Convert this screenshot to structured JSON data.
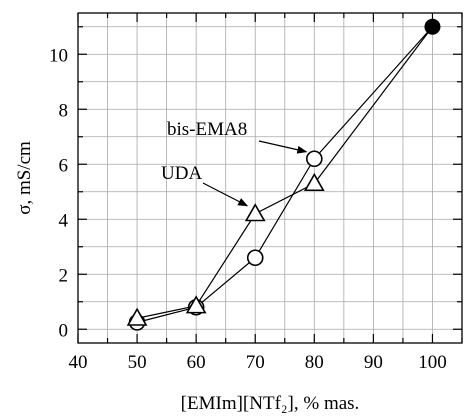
{
  "chart_data": {
    "type": "line",
    "xlabel": "[EMIm][NTf₂], % mas.",
    "ylabel": "σ, mS/cm",
    "xlim": [
      40,
      105
    ],
    "ylim": [
      -0.5,
      11.5
    ],
    "x_ticks": [
      40,
      50,
      60,
      70,
      80,
      90,
      100
    ],
    "y_ticks": [
      0,
      2,
      4,
      6,
      8,
      10
    ],
    "grid": true,
    "series": [
      {
        "name": "bis-EMA8",
        "marker": "circle",
        "x": [
          50,
          60,
          70,
          80,
          100
        ],
        "y": [
          0.25,
          0.8,
          2.6,
          6.2,
          11.0
        ]
      },
      {
        "name": "UDA",
        "marker": "triangle",
        "x": [
          50,
          60,
          70,
          80,
          100
        ],
        "y": [
          0.4,
          0.85,
          4.2,
          5.3,
          11.0
        ]
      }
    ],
    "shared_point": {
      "x": 100,
      "y": 11.0,
      "marker": "filled-circle"
    },
    "annotations": [
      {
        "text": "bis-EMA8",
        "target": {
          "x": 80,
          "y": 6.2
        }
      },
      {
        "text": "UDA",
        "target": {
          "x": 70,
          "y": 4.2
        }
      }
    ]
  }
}
